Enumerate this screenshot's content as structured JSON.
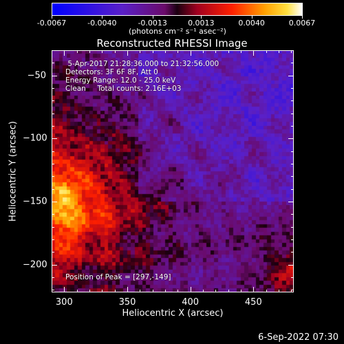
{
  "chart_data": {
    "type": "heatmap",
    "title": "Reconstructed RHESSI Image",
    "xlabel": "Heliocentric X (arcsec)",
    "ylabel": "Heliocentric Y (arcsec)",
    "xlim": [
      290,
      482
    ],
    "ylim": [
      -222,
      -30
    ],
    "xticks": [
      300,
      350,
      400,
      450
    ],
    "yticks": [
      -50,
      -100,
      -150,
      -200
    ],
    "colorbar": {
      "labels": [
        "-0.0067",
        "-0.0040",
        "-0.0013",
        "0.0013",
        "0.0040",
        "0.0067"
      ],
      "values": [
        -0.0067,
        -0.004,
        -0.0013,
        0.0013,
        0.004,
        0.0067
      ],
      "unit": "(photons cm⁻² s⁻¹ asec⁻²)",
      "colormap": "blue-purple-red-orange-yellow-white"
    },
    "annotations": [
      " 5-Apr-2017 21:28:36.000 to 21:32:56.000",
      "Detectors: 3F 6F 8F, Att 0",
      "Energy Range: 12.0 - 25.0 keV",
      "Clean     Total counts: 2.16E+03"
    ],
    "peak_label": "Position of Peak = [297,-149]",
    "peak": [
      297,
      -149
    ]
  },
  "footer": {
    "timestamp": "6-Sep-2022 07:30"
  }
}
